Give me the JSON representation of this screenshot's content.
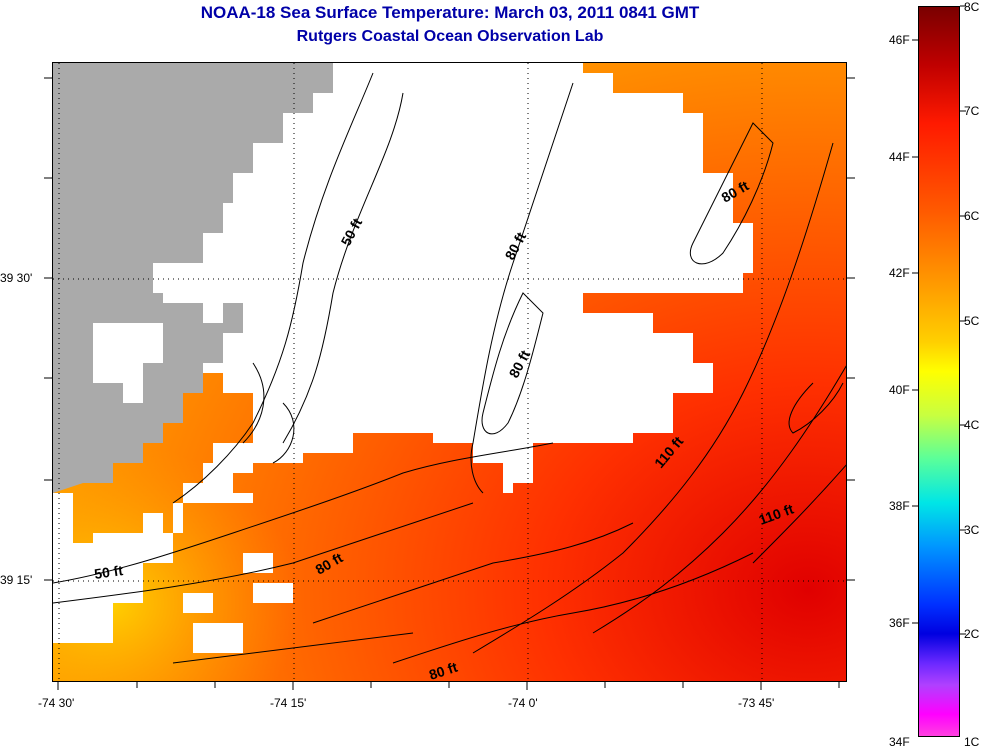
{
  "title": {
    "line1": "NOAA-18 Sea Surface Temperature:  March 03, 2011 0841 GMT",
    "line2": "Rutgers Coastal Ocean Observation Lab"
  },
  "map": {
    "x_ticks": [
      "-74 30'",
      "-74 15'",
      "-74 0'",
      "-73 45'"
    ],
    "y_ticks": [
      "39 30'",
      "39 15'"
    ],
    "contour_labels": [
      "50 ft",
      "80 ft",
      "80 ft",
      "80 ft",
      "80 ft",
      "110 ft",
      "50 ft",
      "80 ft",
      "110 ft"
    ],
    "colors": {
      "land": "#aaaaaa",
      "cloud": "#ffffff",
      "contour": "#000000"
    }
  },
  "colorbar": {
    "fahrenheit_labels": [
      "46F",
      "44F",
      "42F",
      "40F",
      "38F",
      "36F",
      "34F"
    ],
    "celsius_labels": [
      "8C",
      "7C",
      "6C",
      "5C",
      "4C",
      "3C",
      "2C",
      "1C"
    ],
    "range_c": [
      1,
      8
    ],
    "range_f": [
      34,
      47
    ]
  }
}
